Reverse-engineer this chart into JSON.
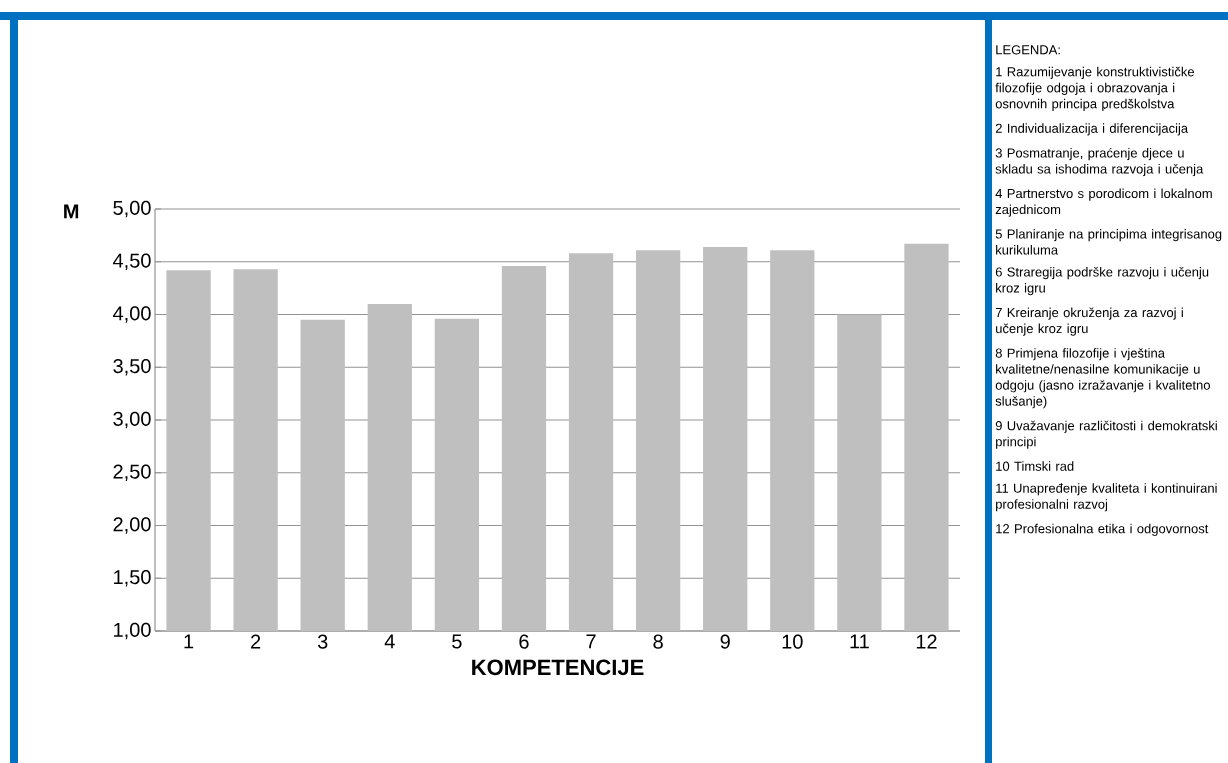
{
  "chart_data": {
    "type": "bar",
    "xlabel": "KOMPETENCIJE",
    "ylabel": "M",
    "categories": [
      "1",
      "2",
      "3",
      "4",
      "5",
      "6",
      "7",
      "8",
      "9",
      "10",
      "11",
      "12"
    ],
    "values": [
      4.42,
      4.43,
      3.95,
      4.1,
      3.96,
      4.46,
      4.58,
      4.61,
      4.64,
      4.61,
      4.0,
      4.67
    ],
    "color": "#bfbfbf",
    "ylim": [
      1,
      5
    ],
    "yticks": [
      {
        "value": 1,
        "label": "1,00"
      },
      {
        "value": 1.5,
        "label": "1,50"
      },
      {
        "value": 2,
        "label": "2,00"
      },
      {
        "value": 2.5,
        "label": "2,50"
      },
      {
        "value": 3,
        "label": "3,00"
      },
      {
        "value": 3.5,
        "label": "3,50"
      },
      {
        "value": 4,
        "label": "4,00"
      },
      {
        "value": 4.5,
        "label": "4,50"
      },
      {
        "value": 5,
        "label": "5,00"
      }
    ],
    "grid": "y",
    "annotations": [
      "LEGENDA:",
      "1 Razumijevanje konstruktivističke filozofije odgoja i obrazovanja i osnovnih principa predškolstva",
      "2 Individualizacija i diferencijacija",
      "3 Posmatranje, praćenje djece u skladu sa ishodima razvoja i učenja",
      "4 Partnerstvo s porodicom i lokalnom zajednicom",
      "5 Planiranje na principima integrisanog kurikuluma",
      "6 Straregija podrške razvoju i učenju kroz igru",
      "7 Kreiranje okruženja za razvoj i učenje kroz igru",
      "8 Primjena filozofije i vještina kvalitetne/nenasilne komunikacije u odgoju (jasno izražavanje i kvalitetno slušanje)",
      "9 Uvažavanje različitosti i demokratski principi",
      "10 Timski rad",
      "11 Unapređenje kvaliteta i kontinuirani profesionalni razvoj",
      "12 Profesionalna etika i odgovornost"
    ]
  }
}
